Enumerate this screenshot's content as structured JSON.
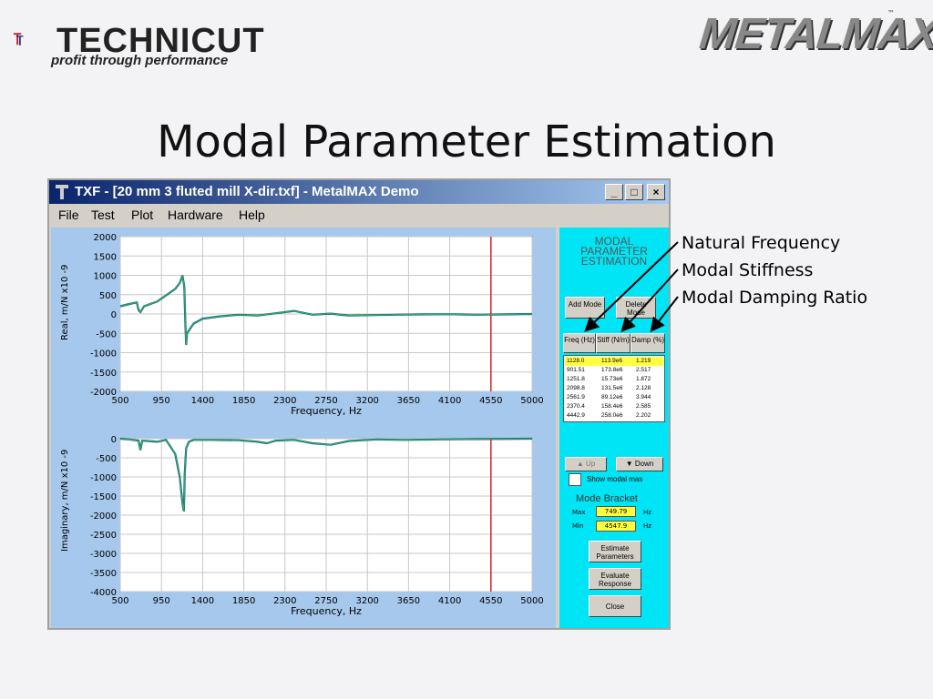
{
  "logos": {
    "technicut": {
      "name": "TECHNICUT",
      "tagline": "profit through performance"
    },
    "metalmax": {
      "name": "METALMAX",
      "tm": "™"
    }
  },
  "slide_title": "Modal Parameter Estimation",
  "window": {
    "title": "TXF - [20 mm 3 fluted mill X-dir.txf] - MetalMAX Demo",
    "caption_buttons": [
      "_",
      "□",
      "×"
    ],
    "menu": [
      "File",
      "Test",
      "Plot",
      "Hardware",
      "Help"
    ]
  },
  "panel": {
    "heading_lines": [
      "MODAL",
      "PARAMETER",
      "ESTIMATION"
    ],
    "add_mode": "Add Mode",
    "delete_mode": "Delete Mode",
    "columns": [
      "Freq (Hz)",
      "Stiff (N/m)",
      "Damp (%)"
    ],
    "rows": [
      [
        "1128.0",
        "113.9e6",
        "1.219"
      ],
      [
        "901.51",
        "173.8e6",
        "2.517"
      ],
      [
        "1251.8",
        "15.73e6",
        "1.872"
      ],
      [
        "2098.8",
        "131.5e6",
        "2.128"
      ],
      [
        "2561.9",
        "89.12e6",
        "3.944"
      ],
      [
        "2370.4",
        "158.4e6",
        "2.585"
      ],
      [
        "4442.9",
        "258.0e6",
        "2.202"
      ]
    ],
    "up": "Up",
    "down": "Down",
    "show_modal_mass": "Show modal mas",
    "mode_bracket": "Mode Bracket",
    "max_label": "Max",
    "max_value": "749.79",
    "min_label": "Min",
    "min_value": "4547.9",
    "unit": "Hz",
    "estimate": "Estimate Parameters",
    "evaluate": "Evaluate Response",
    "close": "Close"
  },
  "annotations": [
    "Natural Frequency",
    "Modal Stiffness",
    "Modal Damping Ratio"
  ],
  "colors": {
    "plot_bg": "#a6c8ec",
    "panel_bg": "#00e5f5",
    "trace_green": "#2bb34a",
    "trace_blue": "#1a3fb0",
    "cursor": "#e02020",
    "selected_row": "#ffff40"
  },
  "chart_data": [
    {
      "type": "line",
      "ylabel": "Real, m/N   x10 -9",
      "xlabel": "Frequency, Hz",
      "xlim": [
        500,
        5000
      ],
      "ylim": [
        -2000,
        2000
      ],
      "xticks": [
        500,
        950,
        1400,
        1850,
        2300,
        2750,
        3200,
        3650,
        4100,
        4550,
        5000
      ],
      "yticks": [
        2000,
        1500,
        1000,
        500,
        0,
        -500,
        -1000,
        -1500,
        -2000
      ],
      "cursor_x": 4550,
      "grid": true,
      "series": [
        {
          "x": [
            500,
            600,
            680,
            700,
            720,
            760,
            900,
            1000,
            1100,
            1150,
            1180,
            1200,
            1210,
            1220,
            1230,
            1300,
            1400,
            1600,
            1800,
            2000,
            2200,
            2400,
            2600,
            2800,
            3000,
            3200,
            3500,
            3800,
            4100,
            4400,
            4700,
            5000
          ],
          "y": [
            200,
            260,
            300,
            100,
            50,
            200,
            320,
            480,
            650,
            800,
            1000,
            700,
            -150,
            -800,
            -500,
            -250,
            -120,
            -60,
            -20,
            -40,
            20,
            80,
            -20,
            10,
            -40,
            -30,
            -20,
            -10,
            -5,
            -20,
            -10,
            0
          ]
        }
      ]
    },
    {
      "type": "line",
      "ylabel": "Imaginary, m/N   x10 -9",
      "xlabel": "Frequency, Hz",
      "xlim": [
        500,
        5000
      ],
      "ylim": [
        -4000,
        0
      ],
      "xticks": [
        500,
        950,
        1400,
        1850,
        2300,
        2750,
        3200,
        3650,
        4100,
        4550,
        5000
      ],
      "yticks": [
        0,
        -500,
        -1000,
        -1500,
        -2000,
        -2500,
        -3000,
        -3500,
        -4000
      ],
      "cursor_x": 4550,
      "grid": true,
      "series": [
        {
          "x": [
            500,
            600,
            700,
            720,
            740,
            800,
            900,
            1000,
            1100,
            1150,
            1180,
            1195,
            1205,
            1220,
            1250,
            1300,
            1500,
            1800,
            2000,
            2100,
            2200,
            2400,
            2600,
            2800,
            3000,
            3300,
            3600,
            4000,
            4400,
            5000
          ],
          "y": [
            0,
            -20,
            -50,
            -300,
            -50,
            -60,
            -80,
            -30,
            -400,
            -1000,
            -1700,
            -1900,
            -900,
            -250,
            -80,
            -30,
            -30,
            -40,
            -80,
            -120,
            -50,
            -30,
            -120,
            -160,
            -60,
            -20,
            -30,
            -20,
            -10,
            0
          ]
        }
      ]
    }
  ]
}
